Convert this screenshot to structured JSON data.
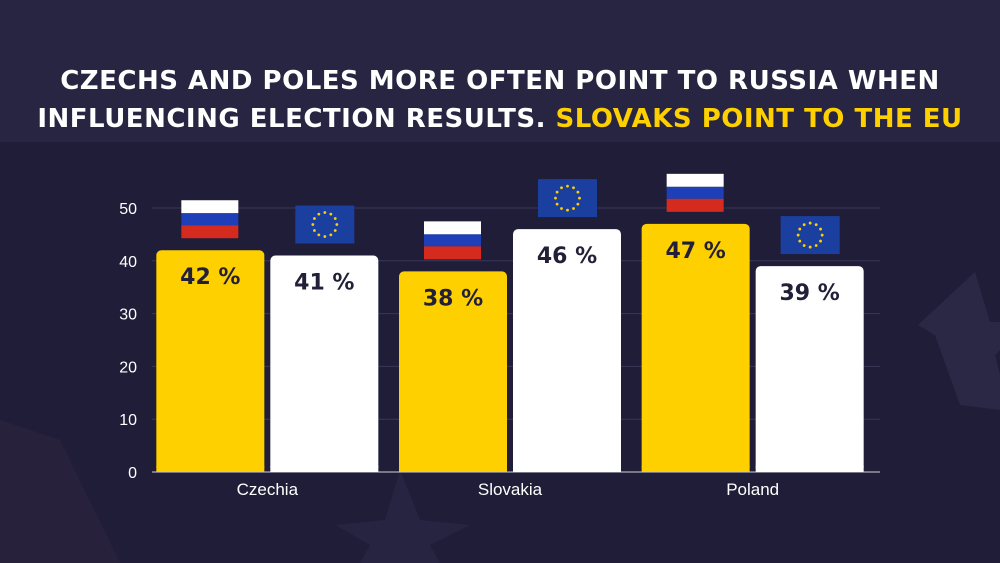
{
  "title": {
    "line1": "Czechs and Poles more often point to Russia when",
    "line2_plain": "influencing election results.",
    "line2_highlight": "Slovaks point to the EU"
  },
  "colors": {
    "background": "#272541",
    "russia_bar": "#ffd000",
    "eu_bar": "#ffffff",
    "value_text": "#222038",
    "highlight": "#ffd000"
  },
  "chart_data": {
    "type": "bar",
    "categories": [
      "Czechia",
      "Slovakia",
      "Poland"
    ],
    "series": [
      {
        "flag": "russia-flag-icon",
        "values": [
          42,
          38,
          47
        ],
        "labels": [
          "42 %",
          "38 %",
          "47 %"
        ]
      },
      {
        "flag": "eu-flag-icon",
        "values": [
          41,
          46,
          39
        ],
        "labels": [
          "41 %",
          "46 %",
          "39 %"
        ]
      }
    ],
    "ylim": [
      0,
      50
    ],
    "yticks": [
      0,
      10,
      20,
      30,
      40,
      50
    ],
    "grid": true
  }
}
